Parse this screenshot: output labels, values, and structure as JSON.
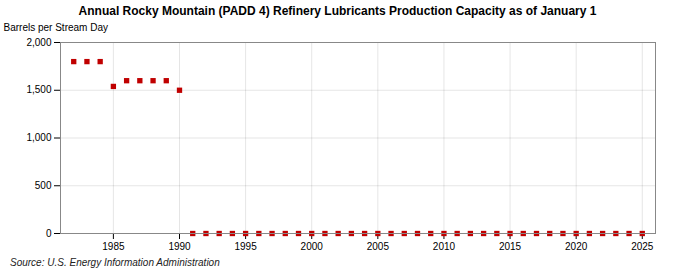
{
  "chart_data": {
    "type": "scatter",
    "title": "Annual Rocky Mountain (PADD 4) Refinery Lubricants Production Capacity as of January 1",
    "ylabel": "Barrels per Stream Day",
    "source": "Source: U.S. Energy Information Administration",
    "x": [
      1982,
      1983,
      1984,
      1985,
      1986,
      1987,
      1988,
      1989,
      1990,
      1991,
      1992,
      1993,
      1994,
      1995,
      1996,
      1997,
      1998,
      1999,
      2000,
      2001,
      2002,
      2003,
      2004,
      2005,
      2006,
      2007,
      2008,
      2009,
      2010,
      2011,
      2012,
      2013,
      2014,
      2015,
      2016,
      2017,
      2018,
      2019,
      2020,
      2021,
      2022,
      2023,
      2024,
      2025
    ],
    "values": [
      1800,
      1800,
      1800,
      1540,
      1600,
      1600,
      1600,
      1600,
      1500,
      0,
      0,
      0,
      0,
      0,
      0,
      0,
      0,
      0,
      0,
      0,
      0,
      0,
      0,
      0,
      0,
      0,
      0,
      0,
      0,
      0,
      0,
      0,
      0,
      0,
      0,
      0,
      0,
      0,
      0,
      0,
      0,
      0,
      0,
      0
    ],
    "color": "#c00000",
    "marker": "square",
    "xlim": [
      1981,
      2026
    ],
    "xticks": [
      1985,
      1990,
      1995,
      2000,
      2005,
      2010,
      2015,
      2020,
      2025
    ],
    "ylim": [
      0,
      2000
    ],
    "yticks": [
      0,
      500,
      {
        "value": 1000,
        "label": "1,000"
      },
      {
        "value": 1500,
        "label": "1,500"
      },
      {
        "value": 2000,
        "label": "2,000"
      }
    ],
    "grid": true
  }
}
